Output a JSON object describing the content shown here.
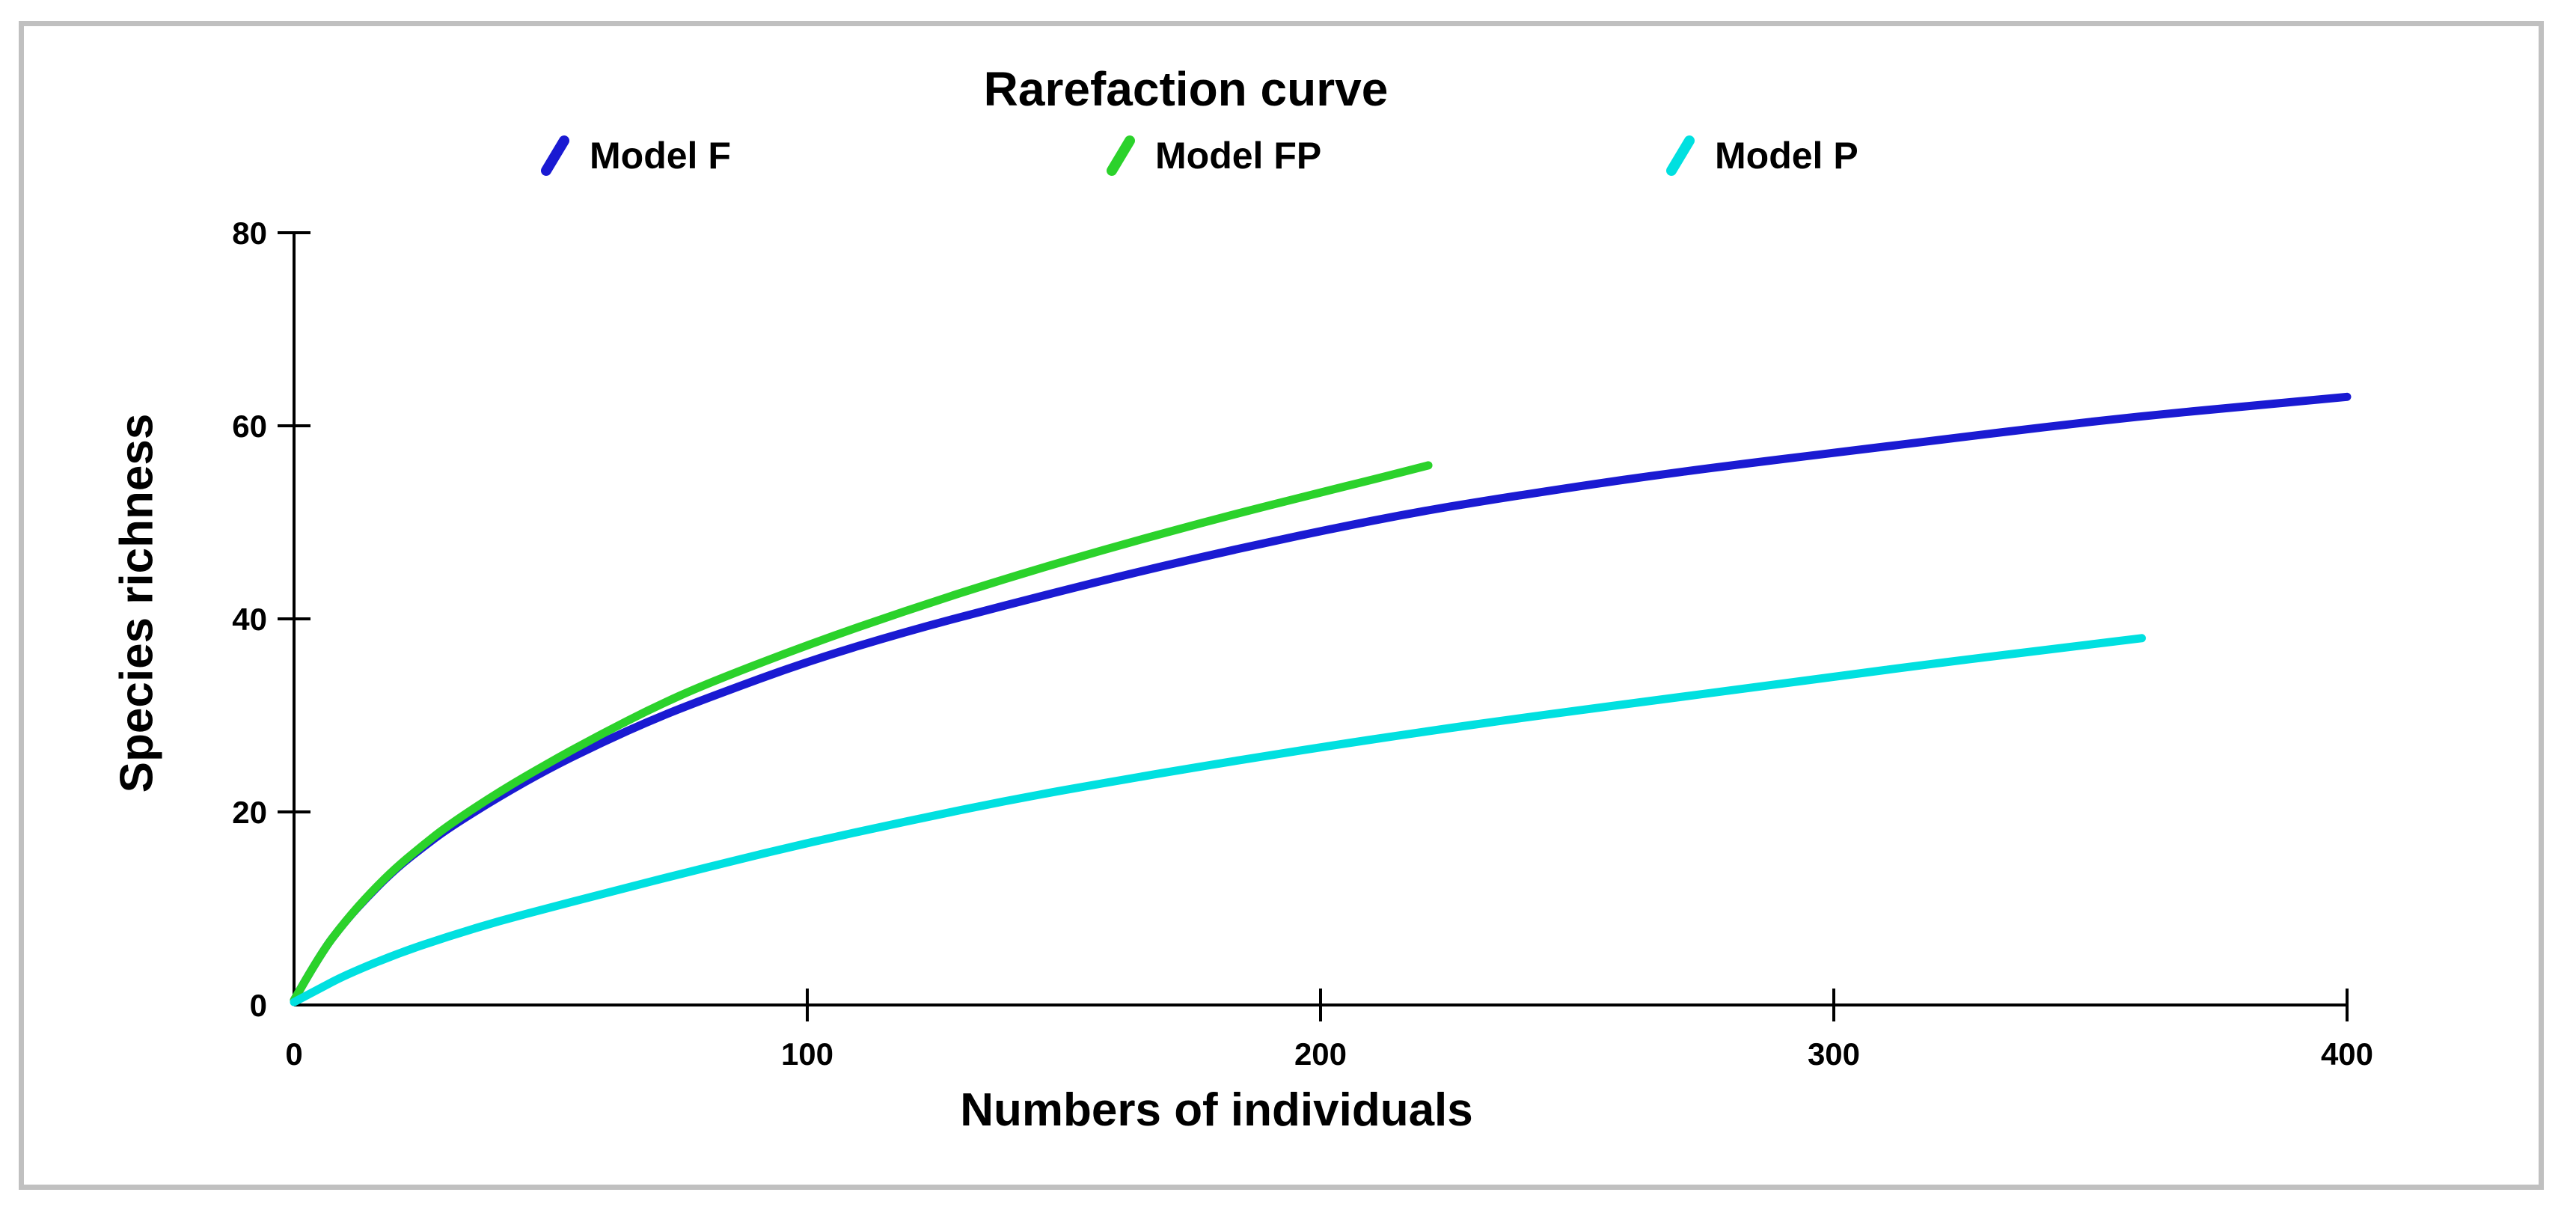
{
  "title": "Rarefaction curve",
  "x_axis": {
    "label": "Numbers of individuals"
  },
  "y_axis": {
    "label": "Species richness"
  },
  "colors": {
    "frame_border": "#c0c0c0",
    "axis": "#000000",
    "model_f": "#1a1ad2",
    "model_fp": "#2bd22b",
    "model_p": "#00e0e0"
  },
  "chart_data": {
    "type": "line",
    "title": "Rarefaction curve",
    "xlabel": "Numbers of individuals",
    "ylabel": "Species richness",
    "xlim": [
      0,
      400
    ],
    "ylim": [
      0,
      80
    ],
    "x_ticks": [
      0,
      100,
      200,
      300,
      400
    ],
    "y_ticks": [
      0,
      20,
      40,
      60,
      80
    ],
    "grid": false,
    "legend_position": "top",
    "series": [
      {
        "name": "Model F",
        "color": "#1a1ad2",
        "points": [
          [
            0,
            0.5
          ],
          [
            5,
            5.2
          ],
          [
            10,
            8.7
          ],
          [
            15,
            11.6
          ],
          [
            20,
            14.2
          ],
          [
            25,
            16.3
          ],
          [
            30,
            18.3
          ],
          [
            40,
            21.6
          ],
          [
            50,
            24.6
          ],
          [
            60,
            27.2
          ],
          [
            70,
            29.6
          ],
          [
            80,
            31.7
          ],
          [
            100,
            35.6
          ],
          [
            120,
            38.8
          ],
          [
            140,
            41.6
          ],
          [
            160,
            44.3
          ],
          [
            180,
            46.8
          ],
          [
            200,
            49.1
          ],
          [
            220,
            51.2
          ],
          [
            240,
            52.9
          ],
          [
            260,
            54.5
          ],
          [
            280,
            55.9
          ],
          [
            300,
            57.2
          ],
          [
            320,
            58.5
          ],
          [
            340,
            59.8
          ],
          [
            360,
            61.0
          ],
          [
            380,
            62.0
          ],
          [
            400,
            63.0
          ]
        ]
      },
      {
        "name": "Model FP",
        "color": "#2bd22b",
        "points": [
          [
            0,
            0.5
          ],
          [
            5,
            5.2
          ],
          [
            10,
            8.7
          ],
          [
            15,
            11.7
          ],
          [
            20,
            14.3
          ],
          [
            25,
            16.5
          ],
          [
            30,
            18.6
          ],
          [
            40,
            22.1
          ],
          [
            50,
            25.2
          ],
          [
            60,
            28.1
          ],
          [
            70,
            30.8
          ],
          [
            80,
            33.2
          ],
          [
            100,
            37.3
          ],
          [
            120,
            41.0
          ],
          [
            140,
            44.4
          ],
          [
            160,
            47.5
          ],
          [
            180,
            50.4
          ],
          [
            200,
            53.1
          ],
          [
            210,
            54.4
          ],
          [
            221,
            55.9
          ]
        ]
      },
      {
        "name": "Model P",
        "color": "#00e0e0",
        "points": [
          [
            0,
            0.3
          ],
          [
            5,
            1.7
          ],
          [
            10,
            3.1
          ],
          [
            20,
            5.3
          ],
          [
            30,
            7.1
          ],
          [
            40,
            8.7
          ],
          [
            50,
            10.1
          ],
          [
            60,
            11.5
          ],
          [
            80,
            14.2
          ],
          [
            100,
            16.8
          ],
          [
            120,
            19.1
          ],
          [
            140,
            21.3
          ],
          [
            160,
            23.2
          ],
          [
            180,
            25.0
          ],
          [
            200,
            26.7
          ],
          [
            220,
            28.3
          ],
          [
            240,
            29.8
          ],
          [
            260,
            31.2
          ],
          [
            280,
            32.6
          ],
          [
            300,
            34.0
          ],
          [
            320,
            35.4
          ],
          [
            340,
            36.7
          ],
          [
            360,
            38.0
          ]
        ]
      }
    ]
  }
}
